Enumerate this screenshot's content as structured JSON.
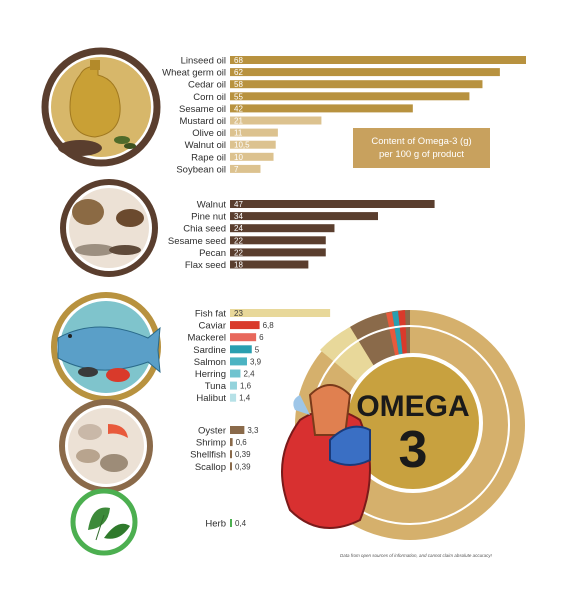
{
  "legend_text_line1": "Content of Omega-3 (g)",
  "legend_text_line2": "per 100 g of product",
  "big_title_word": "OMEGA",
  "big_title_number": "3",
  "footnote": "Data from open sources of information, and cannot claim absolute accuracy!",
  "chart_data": {
    "type": "bar",
    "orientation": "horizontal",
    "groups": [
      {
        "name": "oils",
        "color": "#b8923f",
        "light_color": "#dcc28f",
        "items": [
          {
            "label": "Linseed oil",
            "value": 68,
            "display": "68"
          },
          {
            "label": "Wheat germ oil",
            "value": 62,
            "display": "62"
          },
          {
            "label": "Cedar oil",
            "value": 58,
            "display": "58"
          },
          {
            "label": "Corn oil",
            "value": 55,
            "display": "55"
          },
          {
            "label": "Sesame oil",
            "value": 42,
            "display": "42"
          },
          {
            "label": "Mustard oil",
            "value": 21,
            "display": "21"
          },
          {
            "label": "Olive oil",
            "value": 11,
            "display": "11"
          },
          {
            "label": "Walnut oil",
            "value": 10.5,
            "display": "10,5"
          },
          {
            "label": "Rape oil",
            "value": 10,
            "display": "10"
          },
          {
            "label": "Soybean oil",
            "value": 7,
            "display": "7"
          }
        ]
      },
      {
        "name": "nuts",
        "color": "#5a3e2e",
        "light_color": "#8a6a55",
        "items": [
          {
            "label": "Walnut",
            "value": 47,
            "display": "47"
          },
          {
            "label": "Pine nut",
            "value": 34,
            "display": "34"
          },
          {
            "label": "Chia seed",
            "value": 24,
            "display": "24"
          },
          {
            "label": "Sesame seed",
            "value": 22,
            "display": "22"
          },
          {
            "label": "Pecan",
            "value": 22,
            "display": "22"
          },
          {
            "label": "Flax seed",
            "value": 18,
            "display": "18"
          }
        ]
      },
      {
        "name": "fish",
        "items": [
          {
            "label": "Fish fat",
            "value": 23,
            "display": "23",
            "color": "#e8d89a"
          },
          {
            "label": "Caviar",
            "value": 6.8,
            "display": "6,8",
            "color": "#d93a2b"
          },
          {
            "label": "Mackerel",
            "value": 6,
            "display": "6",
            "color": "#e8685c"
          },
          {
            "label": "Sardine",
            "value": 5,
            "display": "5",
            "color": "#2a9fb0"
          },
          {
            "label": "Salmon",
            "value": 3.9,
            "display": "3,9",
            "color": "#4bb3c2"
          },
          {
            "label": "Herring",
            "value": 2.4,
            "display": "2,4",
            "color": "#6fc3cf"
          },
          {
            "label": "Tuna",
            "value": 1.6,
            "display": "1,6",
            "color": "#93d3dc"
          },
          {
            "label": "Halibut",
            "value": 1.4,
            "display": "1,4",
            "color": "#b6e1e7"
          }
        ]
      },
      {
        "name": "seafood",
        "color": "#8a6a4a",
        "items": [
          {
            "label": "Oyster",
            "value": 3.3,
            "display": "3,3"
          },
          {
            "label": "Shrimp",
            "value": 0.6,
            "display": "0,6"
          },
          {
            "label": "Shellfish",
            "value": 0.39,
            "display": "0,39"
          },
          {
            "label": "Scallop",
            "value": 0.39,
            "display": "0,39"
          }
        ]
      },
      {
        "name": "herbs",
        "color": "#4caf50",
        "items": [
          {
            "label": "Herb",
            "value": 0.4,
            "display": "0,4"
          }
        ]
      }
    ],
    "xlim": [
      0,
      68
    ],
    "grid": false,
    "legend_position": "right"
  },
  "colors": {
    "ring_gold": "#c8a15e",
    "ring_inner": "#b8923f",
    "circle_oil_bg": "#d7b76a",
    "circle_nuts_bg": "#ece1d5",
    "circle_fish_bg": "#7fc4cc",
    "circle_seafood_bg": "#ece1d5",
    "circle_herb_bg": "#ffffff"
  }
}
